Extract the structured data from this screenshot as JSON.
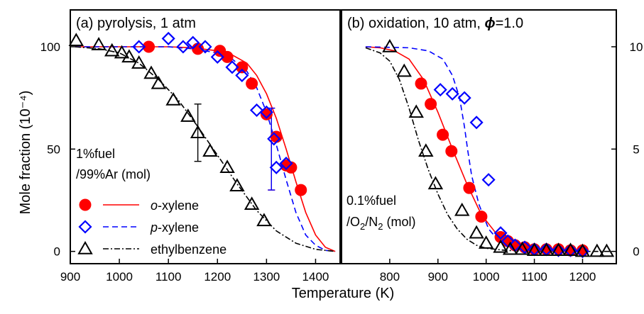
{
  "chart_data": [
    {
      "type": "scatter",
      "panel": "(a)",
      "title": "(a) pyrolysis, 1 atm",
      "xlabel": "Temperature (K)",
      "ylabel": "Mole fraction (10⁻⁴)",
      "xlim": [
        900,
        1450
      ],
      "ylim": [
        -6,
        118
      ],
      "xticks": [
        "900",
        "1000",
        "1100",
        "1200",
        "1300",
        "1400"
      ],
      "xtick_values": [
        900,
        1000,
        1100,
        1200,
        1300,
        1400
      ],
      "yticks": [
        "0",
        "50",
        "100"
      ],
      "ytick_values": [
        0,
        50,
        100
      ],
      "grid": false,
      "annotation": {
        "line1": "1%fuel",
        "line2": "/99%Ar (mol)"
      },
      "series": [
        {
          "name": "o-xylene",
          "marker": "filled-circle",
          "color": "#ff0000",
          "points": [
            [
              1060,
              100
            ],
            [
              1160,
              99
            ],
            [
              1205,
              98
            ],
            [
              1220,
              95
            ],
            [
              1250,
              90
            ],
            [
              1270,
              82
            ],
            [
              1300,
              67
            ],
            [
              1320,
              56
            ],
            [
              1340,
              42
            ],
            [
              1350,
              41
            ],
            [
              1370,
              30
            ]
          ],
          "errorbar": {
            "x": 1310,
            "y": 50,
            "low": 30,
            "high": 70
          },
          "model": [
            [
              910,
              100
            ],
            [
              1000,
              100
            ],
            [
              1100,
              100
            ],
            [
              1150,
              99.5
            ],
            [
              1200,
              98
            ],
            [
              1230,
              96
            ],
            [
              1260,
              92
            ],
            [
              1280,
              86
            ],
            [
              1300,
              77
            ],
            [
              1320,
              65
            ],
            [
              1340,
              50
            ],
            [
              1360,
              34
            ],
            [
              1380,
              19
            ],
            [
              1400,
              8
            ],
            [
              1420,
              2
            ],
            [
              1440,
              0
            ]
          ]
        },
        {
          "name": "p-xylene",
          "marker": "open-diamond",
          "color": "#0000ff",
          "points": [
            [
              1040,
              100
            ],
            [
              1100,
              104
            ],
            [
              1130,
              100
            ],
            [
              1150,
              102
            ],
            [
              1175,
              100
            ],
            [
              1200,
              95
            ],
            [
              1230,
              90
            ],
            [
              1250,
              86
            ],
            [
              1280,
              69
            ],
            [
              1300,
              68
            ],
            [
              1315,
              55
            ],
            [
              1340,
              43
            ],
            [
              1320,
              41
            ]
          ],
          "errorbar": {
            "x": 1310,
            "y": 50,
            "low": 30,
            "high": 70
          },
          "model": [
            [
              910,
              100
            ],
            [
              1000,
              100
            ],
            [
              1100,
              100
            ],
            [
              1150,
              99
            ],
            [
              1200,
              97
            ],
            [
              1230,
              94
            ],
            [
              1260,
              88
            ],
            [
              1280,
              80
            ],
            [
              1300,
              68
            ],
            [
              1320,
              52
            ],
            [
              1340,
              35
            ],
            [
              1360,
              19
            ],
            [
              1380,
              8
            ],
            [
              1400,
              3
            ],
            [
              1420,
              0.5
            ],
            [
              1440,
              0
            ]
          ]
        },
        {
          "name": "ethylbenzene",
          "marker": "open-triangle",
          "color": "#000000",
          "points": [
            [
              912,
              103
            ],
            [
              958,
              101
            ],
            [
              985,
              98
            ],
            [
              1005,
              97
            ],
            [
              1020,
              95
            ],
            [
              1040,
              92
            ],
            [
              1065,
              87
            ],
            [
              1080,
              82
            ],
            [
              1110,
              74
            ],
            [
              1140,
              66
            ],
            [
              1160,
              58
            ],
            [
              1185,
              49
            ],
            [
              1220,
              41
            ],
            [
              1240,
              32
            ],
            [
              1270,
              23
            ],
            [
              1295,
              15
            ]
          ],
          "errorbar": {
            "x": 1160,
            "y": 58,
            "low": 44,
            "high": 72
          },
          "model": [
            [
              910,
              100
            ],
            [
              960,
              99
            ],
            [
              1000,
              97
            ],
            [
              1040,
              92
            ],
            [
              1080,
              84
            ],
            [
              1120,
              74
            ],
            [
              1160,
              61
            ],
            [
              1200,
              47
            ],
            [
              1240,
              33
            ],
            [
              1280,
              20
            ],
            [
              1320,
              10
            ],
            [
              1360,
              4
            ],
            [
              1400,
              1
            ],
            [
              1440,
              0
            ]
          ]
        }
      ]
    },
    {
      "type": "scatter",
      "panel": "(b)",
      "title": "(b) oxidation, 10 atm, ",
      "title_symbol": "ϕ",
      "title_suffix": "=1.0",
      "xlabel": "Temperature (K)",
      "ylabel": "",
      "xlim": [
        700,
        1270
      ],
      "ylim": [
        -0.6,
        11.8
      ],
      "xticks": [
        "800",
        "900",
        "1000",
        "1100",
        "1200"
      ],
      "xtick_values": [
        800,
        900,
        1000,
        1100,
        1200
      ],
      "yticks": [
        "0",
        "5",
        "10"
      ],
      "ytick_values": [
        0,
        5,
        10
      ],
      "grid": false,
      "annotation": {
        "line1": "0.1%fuel",
        "line2_parts": [
          "/O",
          "2",
          "/N",
          "2",
          " (mol)"
        ]
      },
      "series": [
        {
          "name": "o-xylene",
          "marker": "filled-circle",
          "color": "#ff0000",
          "points": [
            [
              865,
              8.2
            ],
            [
              885,
              7.2
            ],
            [
              910,
              5.7
            ],
            [
              928,
              4.9
            ],
            [
              965,
              3.1
            ],
            [
              990,
              1.7
            ],
            [
              1030,
              0.7
            ],
            [
              1045,
              0.5
            ],
            [
              1060,
              0.3
            ],
            [
              1080,
              0.2
            ],
            [
              1100,
              0.1
            ],
            [
              1125,
              0.1
            ],
            [
              1150,
              0.1
            ],
            [
              1175,
              0.05
            ],
            [
              1200,
              0.05
            ]
          ],
          "model": [
            [
              750,
              10
            ],
            [
              780,
              9.95
            ],
            [
              810,
              9.8
            ],
            [
              840,
              9.4
            ],
            [
              870,
              8.4
            ],
            [
              900,
              6.8
            ],
            [
              930,
              5.0
            ],
            [
              960,
              3.3
            ],
            [
              990,
              1.8
            ],
            [
              1020,
              0.9
            ],
            [
              1050,
              0.4
            ],
            [
              1080,
              0.15
            ],
            [
              1110,
              0.05
            ],
            [
              1140,
              0.02
            ],
            [
              1200,
              0
            ]
          ]
        },
        {
          "name": "p-xylene",
          "marker": "open-diamond",
          "color": "#0000ff",
          "points": [
            [
              905,
              7.9
            ],
            [
              930,
              7.7
            ],
            [
              955,
              7.5
            ],
            [
              980,
              6.3
            ],
            [
              1005,
              3.5
            ],
            [
              1030,
              0.9
            ],
            [
              1045,
              0.5
            ],
            [
              1060,
              0.3
            ],
            [
              1080,
              0.2
            ],
            [
              1100,
              0.1
            ],
            [
              1125,
              0.1
            ],
            [
              1150,
              0.05
            ],
            [
              1175,
              0.05
            ],
            [
              1200,
              0
            ]
          ],
          "model": [
            [
              750,
              10
            ],
            [
              840,
              9.95
            ],
            [
              880,
              9.8
            ],
            [
              910,
              9.4
            ],
            [
              930,
              8.6
            ],
            [
              945,
              7.5
            ],
            [
              955,
              6.1
            ],
            [
              962,
              4.9
            ],
            [
              970,
              3.7
            ],
            [
              985,
              2.3
            ],
            [
              1005,
              1.1
            ],
            [
              1030,
              0.4
            ],
            [
              1060,
              0.1
            ],
            [
              1100,
              0.02
            ],
            [
              1200,
              0
            ]
          ]
        },
        {
          "name": "ethylbenzene",
          "marker": "open-triangle",
          "color": "#000000",
          "points": [
            [
              800,
              10.0
            ],
            [
              830,
              8.8
            ],
            [
              855,
              6.8
            ],
            [
              875,
              4.9
            ],
            [
              895,
              3.3
            ],
            [
              950,
              2.0
            ],
            [
              980,
              0.9
            ],
            [
              1000,
              0.4
            ],
            [
              1030,
              0.2
            ],
            [
              1050,
              0.1
            ],
            [
              1075,
              0.1
            ],
            [
              1100,
              0.05
            ],
            [
              1125,
              0.05
            ],
            [
              1150,
              0.05
            ],
            [
              1175,
              0.05
            ],
            [
              1200,
              0
            ],
            [
              1230,
              0
            ],
            [
              1250,
              0
            ]
          ],
          "model": [
            [
              750,
              9.95
            ],
            [
              780,
              9.7
            ],
            [
              800,
              9.3
            ],
            [
              820,
              8.4
            ],
            [
              840,
              7.0
            ],
            [
              860,
              5.4
            ],
            [
              880,
              4.0
            ],
            [
              900,
              2.8
            ],
            [
              920,
              1.8
            ],
            [
              940,
              1.1
            ],
            [
              960,
              0.6
            ],
            [
              980,
              0.3
            ],
            [
              1000,
              0.15
            ],
            [
              1040,
              0.05
            ],
            [
              1100,
              0
            ],
            [
              1260,
              0
            ]
          ]
        }
      ]
    }
  ],
  "legend": [
    {
      "prefix": "",
      "italic": "o",
      "suffix": "-xylene",
      "marker": "filled-circle",
      "line": "solid",
      "color": "#ff0000"
    },
    {
      "prefix": "",
      "italic": "p",
      "suffix": "-xylene",
      "marker": "open-diamond",
      "line": "dashed",
      "color": "#0000ff"
    },
    {
      "prefix": "ethylbenzene",
      "italic": "",
      "suffix": "",
      "marker": "open-triangle",
      "line": "dashdot",
      "color": "#000000"
    }
  ],
  "colors": {
    "o_xylene": "#ff0000",
    "p_xylene": "#0000ff",
    "ethylbenzene": "#000000",
    "frame": "#000000"
  }
}
